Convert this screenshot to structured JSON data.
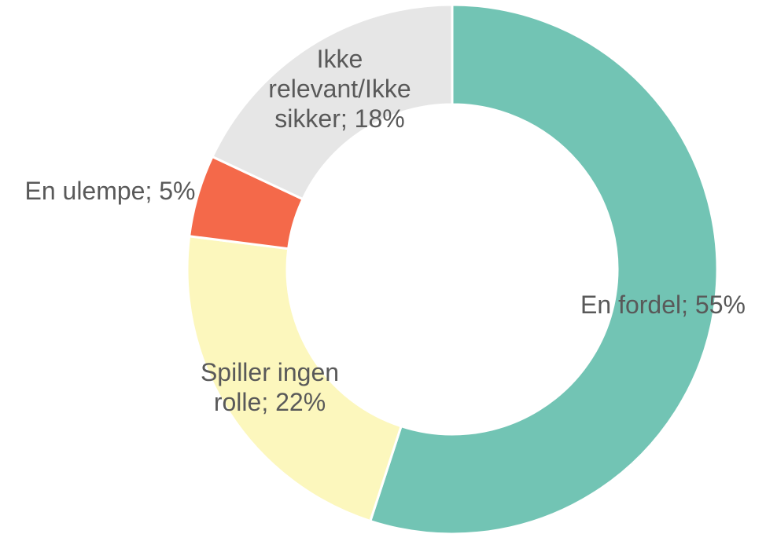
{
  "chart_data": {
    "type": "donut",
    "values": [
      55,
      22,
      5,
      18
    ],
    "value_labels": [
      "En fordel; 55%",
      "Spiller ingen rolle; 22%",
      "En ulempe; 5%",
      "Ikke relevant/Ikke sikker; 18%"
    ],
    "colors": [
      "#72c4b4",
      "#fcf7bd",
      "#f4694a",
      "#e6e6e6"
    ]
  }
}
